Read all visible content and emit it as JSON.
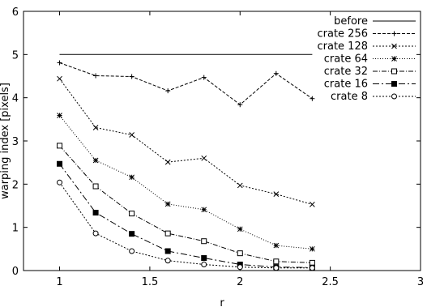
{
  "chart_data": {
    "type": "line",
    "title": "",
    "xlabel": "r",
    "ylabel": "warping index [pixels]",
    "xlim": [
      0.8,
      3
    ],
    "ylim": [
      0,
      6
    ],
    "xticks": [
      1,
      1.5,
      2,
      2.5,
      3
    ],
    "xtick_labels": [
      "1",
      "1.5",
      "2",
      "2.5",
      "3"
    ],
    "yticks": [
      0,
      1,
      2,
      3,
      4,
      5,
      6
    ],
    "ytick_labels": [
      "0",
      "1",
      "2",
      "3",
      "4",
      "5",
      "6"
    ],
    "grid": false,
    "legend_position": "top-right",
    "series": [
      {
        "name": "before",
        "style": "solid",
        "marker": "none",
        "x": [
          1,
          2.4
        ],
        "y": [
          5.0,
          5.0
        ]
      },
      {
        "name": "crate 256",
        "style": "dashed",
        "marker": "plus",
        "x": [
          1,
          1.2,
          1.4,
          1.6,
          1.8,
          2,
          2.2,
          2.4
        ],
        "y": [
          4.81,
          4.51,
          4.49,
          4.16,
          4.47,
          3.84,
          4.56,
          3.98
        ]
      },
      {
        "name": "crate 128",
        "style": "dotted",
        "marker": "cross",
        "x": [
          1,
          1.2,
          1.4,
          1.6,
          1.8,
          2,
          2.2,
          2.4
        ],
        "y": [
          4.44,
          3.31,
          3.14,
          2.51,
          2.6,
          1.97,
          1.77,
          1.53
        ]
      },
      {
        "name": "crate 64",
        "style": "dotted-fine",
        "marker": "star",
        "x": [
          1,
          1.2,
          1.4,
          1.6,
          1.8,
          2,
          2.2,
          2.4
        ],
        "y": [
          3.59,
          2.55,
          2.16,
          1.54,
          1.41,
          0.96,
          0.58,
          0.5
        ]
      },
      {
        "name": "crate 32",
        "style": "dash-dot",
        "marker": "open-square",
        "x": [
          1,
          1.2,
          1.4,
          1.6,
          1.8,
          2,
          2.2,
          2.4
        ],
        "y": [
          2.89,
          1.95,
          1.32,
          0.86,
          0.68,
          0.4,
          0.21,
          0.18
        ]
      },
      {
        "name": "crate 16",
        "style": "dash-dot-long",
        "marker": "filled-square",
        "x": [
          1,
          1.2,
          1.4,
          1.6,
          1.8,
          2,
          2.2,
          2.4
        ],
        "y": [
          2.47,
          1.34,
          0.85,
          0.45,
          0.29,
          0.14,
          0.08,
          0.07
        ]
      },
      {
        "name": "crate 8",
        "style": "dotted",
        "marker": "open-circle",
        "x": [
          1,
          1.2,
          1.4,
          1.6,
          1.8,
          2,
          2.2,
          2.4
        ],
        "y": [
          2.04,
          0.86,
          0.45,
          0.23,
          0.14,
          0.08,
          0.06,
          0.06
        ]
      }
    ]
  }
}
